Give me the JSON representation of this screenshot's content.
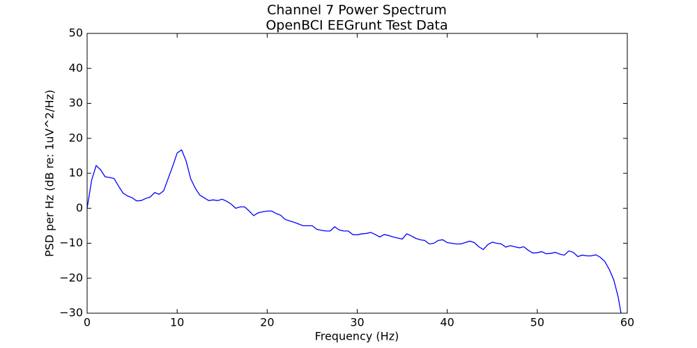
{
  "chart_data": {
    "type": "line",
    "title": "Channel 7 Power Spectrum",
    "subtitle": "OpenBCI EEGrunt Test Data",
    "x_label": "Frequency (Hz)",
    "y_label": "PSD per Hz (dB re: 1uV^2/Hz)",
    "x": [
      0,
      0.5,
      1,
      1.5,
      2,
      2.5,
      3,
      3.5,
      4,
      4.5,
      5,
      5.5,
      6,
      6.5,
      7,
      7.5,
      8,
      8.5,
      9,
      9.5,
      10,
      10.5,
      11,
      11.5,
      12,
      12.5,
      13,
      13.5,
      14,
      14.5,
      15,
      15.5,
      16,
      16.5,
      17,
      17.5,
      18,
      18.5,
      19,
      19.5,
      20,
      20.5,
      21,
      21.5,
      22,
      22.5,
      23,
      23.5,
      24,
      24.5,
      25,
      25.5,
      26,
      26.5,
      27,
      27.5,
      28,
      28.5,
      29,
      29.5,
      30,
      30.5,
      31,
      31.5,
      32,
      32.5,
      33,
      33.5,
      34,
      34.5,
      35,
      35.5,
      36,
      36.5,
      37,
      37.5,
      38,
      38.5,
      39,
      39.5,
      40,
      40.5,
      41,
      41.5,
      42,
      42.5,
      43,
      43.5,
      44,
      44.5,
      45,
      45.5,
      46,
      46.5,
      47,
      47.5,
      48,
      48.5,
      49,
      49.5,
      50,
      50.5,
      51,
      51.5,
      52,
      52.5,
      53,
      53.5,
      54,
      54.5,
      55,
      55.5,
      56,
      56.5,
      57,
      57.5,
      58,
      58.5,
      59,
      59.5
    ],
    "series": [
      {
        "name": "Channel 7",
        "color": "#0000ff",
        "values": [
          0,
          8,
          12.2,
          11,
          9,
          8.8,
          8.5,
          6.3,
          4.3,
          3.5,
          3,
          2.1,
          2.2,
          2.8,
          3.2,
          4.5,
          4,
          5,
          8.5,
          12,
          15.8,
          16.7,
          13.5,
          8.5,
          5.8,
          3.8,
          3,
          2.2,
          2.4,
          2.2,
          2.6,
          2,
          1.2,
          0,
          0.4,
          0.4,
          -0.8,
          -2.1,
          -1.3,
          -1,
          -0.8,
          -0.8,
          -1.5,
          -2,
          -3.2,
          -3.6,
          -4,
          -4.5,
          -5,
          -5,
          -5,
          -6,
          -6.3,
          -6.5,
          -6.5,
          -5.3,
          -6.2,
          -6.5,
          -6.5,
          -7.5,
          -7.6,
          -7.3,
          -7.2,
          -6.9,
          -7.5,
          -8.2,
          -7.5,
          -7.8,
          -8.2,
          -8.5,
          -8.8,
          -7.3,
          -7.9,
          -8.6,
          -9,
          -9.2,
          -10.2,
          -10,
          -9.2,
          -9,
          -9.8,
          -10,
          -10.2,
          -10.2,
          -9.8,
          -9.4,
          -9.8,
          -11,
          -11.8,
          -10.4,
          -9.7,
          -10,
          -10.2,
          -11.1,
          -10.7,
          -11,
          -11.3,
          -11,
          -12,
          -12.8,
          -12.7,
          -12.4,
          -13,
          -12.9,
          -12.6,
          -13.1,
          -13.4,
          -12.2,
          -12.6,
          -13.8,
          -13.4,
          -13.6,
          -13.6,
          -13.3,
          -14,
          -15.2,
          -17.5,
          -20.5,
          -25.5,
          -33
        ]
      }
    ],
    "xlim": [
      0,
      60
    ],
    "xticks": [
      0,
      10,
      20,
      30,
      40,
      50,
      60
    ],
    "ylim": [
      -30,
      50
    ],
    "yticks": [
      {
        "value": -30,
        "label": "−30"
      },
      {
        "value": -20,
        "label": "−20"
      },
      {
        "value": -10,
        "label": "−10"
      },
      0,
      10,
      20,
      30,
      40,
      50
    ],
    "grid": false
  }
}
